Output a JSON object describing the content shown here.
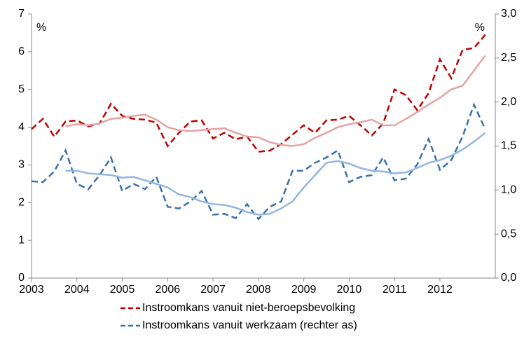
{
  "chart_data": {
    "type": "line",
    "left_unit": "%",
    "right_unit": "%",
    "x": [
      2003.0,
      2003.25,
      2003.5,
      2003.75,
      2004.0,
      2004.25,
      2004.5,
      2004.75,
      2005.0,
      2005.25,
      2005.5,
      2005.75,
      2006.0,
      2006.25,
      2006.5,
      2006.75,
      2007.0,
      2007.25,
      2007.5,
      2007.75,
      2008.0,
      2008.25,
      2008.5,
      2008.75,
      2009.0,
      2009.25,
      2009.5,
      2009.75,
      2010.0,
      2010.25,
      2010.5,
      2010.75,
      2011.0,
      2011.25,
      2011.5,
      2011.75,
      2012.0,
      2012.25,
      2012.5,
      2012.75,
      2013.0
    ],
    "series": [
      {
        "name": "Instroomkans vanuit niet-beroepsbevolking",
        "color": "#c00000",
        "dash": true,
        "values": [
          3.95,
          4.22,
          3.75,
          4.15,
          4.18,
          4.02,
          4.1,
          4.62,
          4.3,
          4.22,
          4.2,
          4.12,
          3.5,
          3.85,
          4.15,
          4.18,
          3.7,
          3.85,
          3.68,
          3.75,
          3.35,
          3.38,
          3.55,
          3.8,
          4.05,
          3.85,
          4.18,
          4.2,
          4.3,
          4.05,
          3.78,
          4.1,
          5.0,
          4.85,
          4.45,
          4.9,
          5.8,
          5.3,
          6.05,
          6.1,
          6.45
        ]
      },
      {
        "color": "#e6a3a3",
        "dash": false,
        "values": [
          null,
          null,
          null,
          4.02,
          4.08,
          4.05,
          4.1,
          4.22,
          4.25,
          4.3,
          4.33,
          4.2,
          4.0,
          3.92,
          3.9,
          3.92,
          3.95,
          3.97,
          3.85,
          3.75,
          3.73,
          3.6,
          3.53,
          3.5,
          3.55,
          3.72,
          3.85,
          4.0,
          4.08,
          4.13,
          4.2,
          4.05,
          4.05,
          4.22,
          4.4,
          4.6,
          4.78,
          5.0,
          5.1,
          5.5,
          5.9
        ]
      },
      {
        "name": "Instroomkans vanuit werkzaam (rechter as)",
        "color": "#3a70aa",
        "dash": true,
        "axis": "y2",
        "values": [
          1.1,
          1.09,
          1.21,
          1.45,
          1.07,
          1.01,
          1.17,
          1.37,
          0.99,
          1.07,
          1.01,
          1.15,
          0.81,
          0.79,
          0.87,
          0.99,
          0.72,
          0.73,
          0.68,
          0.84,
          0.67,
          0.81,
          0.87,
          1.22,
          1.22,
          1.31,
          1.37,
          1.45,
          1.09,
          1.15,
          1.17,
          1.37,
          1.11,
          1.13,
          1.29,
          1.58,
          1.23,
          1.34,
          1.61,
          1.97,
          1.69
        ]
      },
      {
        "color": "#92b6e2",
        "dash": false,
        "axis": "y2",
        "values": [
          null,
          null,
          null,
          1.22,
          1.22,
          1.19,
          1.18,
          1.17,
          1.14,
          1.15,
          1.11,
          1.07,
          1.03,
          0.95,
          0.92,
          0.87,
          0.84,
          0.83,
          0.8,
          0.75,
          0.72,
          0.73,
          0.79,
          0.87,
          1.03,
          1.17,
          1.31,
          1.33,
          1.3,
          1.25,
          1.22,
          1.21,
          1.19,
          1.2,
          1.25,
          1.31,
          1.34,
          1.39,
          1.46,
          1.55,
          1.65
        ]
      }
    ],
    "xlim": [
      2003,
      2013.22
    ],
    "xticks": [
      2003,
      2004,
      2005,
      2006,
      2007,
      2008,
      2009,
      2010,
      2011,
      2012
    ],
    "ylim": [
      0,
      7
    ],
    "yticks": [
      0,
      1,
      2,
      3,
      4,
      5,
      6,
      7
    ],
    "y2lim": [
      0,
      3
    ],
    "y2ticks": [
      {
        "value": 0,
        "label": "0,0"
      },
      {
        "value": 0.5,
        "label": "0,5"
      },
      {
        "value": 1,
        "label": "1,0"
      },
      {
        "value": 1.5,
        "label": "1,5"
      },
      {
        "value": 2,
        "label": "2,0"
      },
      {
        "value": 2.5,
        "label": "2,5"
      },
      {
        "value": 3,
        "label": "3,0"
      }
    ],
    "grid": false,
    "legend": "bottom"
  }
}
